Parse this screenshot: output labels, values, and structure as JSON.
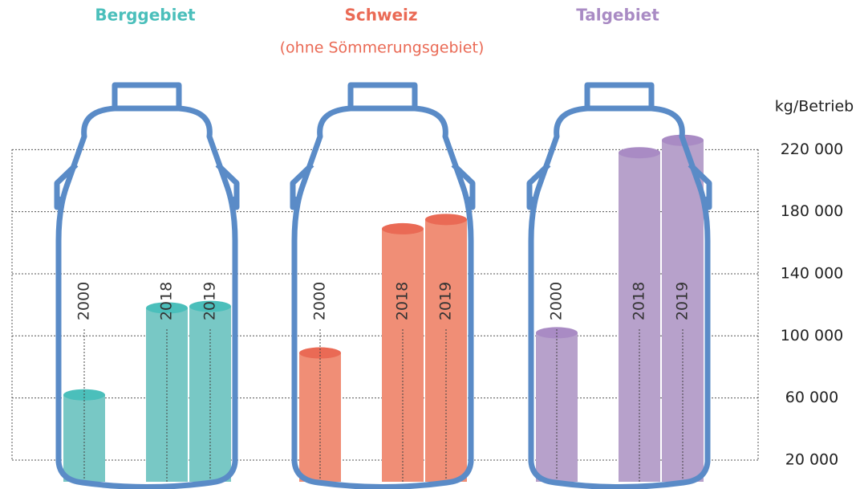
{
  "chart_data": {
    "type": "bar",
    "y_label": "kg/Betrieb",
    "annotations": [
      "(ohne Sömmerungsgebiet)"
    ],
    "categories": [
      "2000",
      "2018",
      "2019"
    ],
    "series": [
      {
        "name": "Berggebiet",
        "color": "#78c8c5",
        "top_color": "#4bbfbb",
        "values": [
          62000,
          118000,
          119000
        ]
      },
      {
        "name": "Schweiz",
        "color": "#f08e76",
        "top_color": "#ea6a55",
        "values": [
          89000,
          169000,
          175000
        ]
      },
      {
        "name": "Talgebiet",
        "color": "#b7a1cb",
        "top_color": "#a98bc4",
        "values": [
          102000,
          218000,
          226000
        ]
      }
    ],
    "ylim": [
      6000,
      230000
    ],
    "yticks": [
      {
        "value": 20000,
        "label": "20 000"
      },
      {
        "value": 60000,
        "label": "60 000"
      },
      {
        "value": 100000,
        "label": "100 000"
      },
      {
        "value": 140000,
        "label": "140 000"
      },
      {
        "value": 180000,
        "label": "180 000"
      },
      {
        "value": 220000,
        "label": "220 000"
      }
    ],
    "grid": true
  }
}
